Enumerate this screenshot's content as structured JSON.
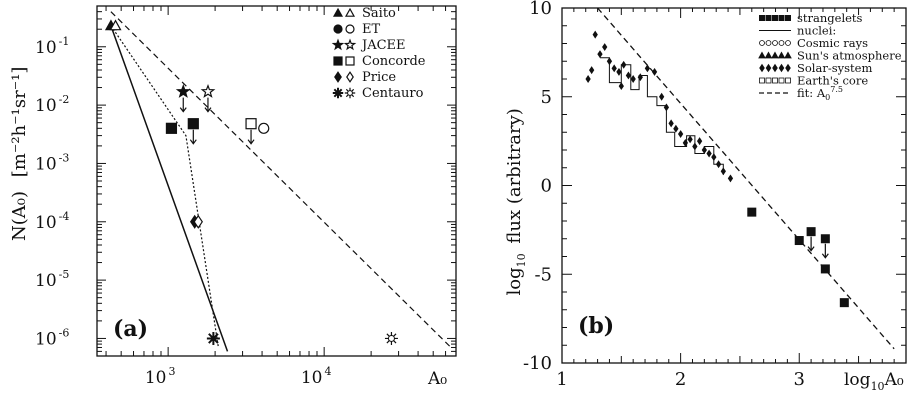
{
  "chart_data": [
    {
      "id": "a",
      "type": "scatter",
      "panel_label": "(a)",
      "xlabel": "A₀",
      "ylabel_main": "N(A₀)",
      "ylabel_units": "[m⁻²h⁻¹sr⁻¹]",
      "x_scale": "log",
      "y_scale": "log",
      "xlim": [
        350,
        70000
      ],
      "ylim": [
        5e-07,
        0.5
      ],
      "x_ticks": [
        {
          "value": 1000,
          "base": "10",
          "exp": "3"
        },
        {
          "value": 10000,
          "base": "10",
          "exp": "4"
        }
      ],
      "y_ticks": [
        {
          "value": 0.1,
          "base": "10",
          "exp": "-1"
        },
        {
          "value": 0.01,
          "base": "10",
          "exp": "-2"
        },
        {
          "value": 0.001,
          "base": "10",
          "exp": "-3"
        },
        {
          "value": 0.0001,
          "base": "10",
          "exp": "-4"
        },
        {
          "value": 1e-05,
          "base": "10",
          "exp": "-5"
        },
        {
          "value": 1e-06,
          "base": "10",
          "exp": "-6"
        }
      ],
      "legend_position": "top-right",
      "legend": [
        {
          "label": "Saito",
          "marker": "triangle"
        },
        {
          "label": "ET",
          "marker": "circle"
        },
        {
          "label": "JACEE",
          "marker": "star"
        },
        {
          "label": "Concorde",
          "marker": "square"
        },
        {
          "label": "Price",
          "marker": "diamond"
        },
        {
          "label": "Centauro",
          "marker": "asterisk"
        }
      ],
      "points": [
        {
          "series": "Saito",
          "x": 430,
          "y": 0.23,
          "marker": "triangle",
          "filled": true
        },
        {
          "series": "Saito",
          "x": 460,
          "y": 0.23,
          "marker": "triangle",
          "filled": false
        },
        {
          "series": "JACEE",
          "x": 1250,
          "y": 0.017,
          "marker": "star",
          "filled": true,
          "upper_limit": true
        },
        {
          "series": "JACEE",
          "x": 1800,
          "y": 0.017,
          "marker": "star",
          "filled": false,
          "upper_limit": true
        },
        {
          "series": "Concorde",
          "x": 1050,
          "y": 0.004,
          "marker": "square",
          "filled": true
        },
        {
          "series": "Concorde",
          "x": 1450,
          "y": 0.0048,
          "marker": "square",
          "filled": true,
          "upper_limit": true
        },
        {
          "series": "Concorde",
          "x": 3400,
          "y": 0.0048,
          "marker": "square",
          "filled": false,
          "upper_limit": true
        },
        {
          "series": "ET",
          "x": 4100,
          "y": 0.004,
          "marker": "circle",
          "filled": false
        },
        {
          "series": "Price",
          "x": 1480,
          "y": 0.0001,
          "marker": "diamond",
          "filled": true
        },
        {
          "series": "Price",
          "x": 1560,
          "y": 0.0001,
          "marker": "diamond",
          "filled": false
        },
        {
          "series": "Centauro",
          "x": 1950,
          "y": 1e-06,
          "marker": "asterisk",
          "filled": true
        },
        {
          "series": "Centauro",
          "x": 27000,
          "y": 1e-06,
          "marker": "asterisk",
          "filled": false
        }
      ],
      "lines": [
        {
          "style": "solid",
          "points": [
            [
              430,
              0.23
            ],
            [
              2400,
              6e-07
            ]
          ]
        },
        {
          "style": "dotted",
          "points": [
            [
              430,
              0.23
            ],
            [
              1300,
              0.003
            ],
            [
              2100,
              7e-07
            ]
          ]
        },
        {
          "style": "dashed",
          "points": [
            [
              430,
              0.4
            ],
            [
              65000,
              7e-07
            ]
          ]
        }
      ]
    },
    {
      "id": "b",
      "type": "scatter",
      "panel_label": "(b)",
      "xlabel_base": "log",
      "xlabel_sub": "10",
      "xlabel_var": "A₀",
      "ylabel_base": "log",
      "ylabel_sub": "10",
      "ylabel_rest": "flux (arbitrary)",
      "xlim": [
        1,
        3.9
      ],
      "ylim": [
        -10,
        10
      ],
      "x_ticks": [
        1,
        2,
        3
      ],
      "y_ticks": [
        10,
        5,
        0,
        -5,
        -10
      ],
      "legend_position": "top-right",
      "legend": [
        {
          "label": "strangelets",
          "style": "squares"
        },
        {
          "label": "nuclei:",
          "style": "solid"
        },
        {
          "label": "Cosmic rays",
          "style": "circles"
        },
        {
          "label": "Sun's atmosphere",
          "style": "triangles"
        },
        {
          "label": "Solar-system",
          "style": "diamonds"
        },
        {
          "label": "Earth's core",
          "style": "squares-open"
        },
        {
          "label": "fit: ",
          "style": "dashed",
          "fit_sub": "0",
          "fit_exp": "7.5"
        }
      ],
      "fit_line": [
        [
          1.3,
          10
        ],
        [
          3.8,
          -9.2
        ]
      ],
      "nuclei_step": [
        [
          1.32,
          7.2
        ],
        [
          1.4,
          7.2
        ],
        [
          1.4,
          5.8
        ],
        [
          1.5,
          5.8
        ],
        [
          1.5,
          6.8
        ],
        [
          1.58,
          6.8
        ],
        [
          1.58,
          5.4
        ],
        [
          1.65,
          5.4
        ],
        [
          1.65,
          6.2
        ],
        [
          1.72,
          6.2
        ],
        [
          1.72,
          5.0
        ],
        [
          1.8,
          5.0
        ],
        [
          1.8,
          4.5
        ],
        [
          1.88,
          4.5
        ],
        [
          1.88,
          3.0
        ],
        [
          1.95,
          3.0
        ],
        [
          1.95,
          2.2
        ],
        [
          2.05,
          2.2
        ],
        [
          2.05,
          2.8
        ],
        [
          2.12,
          2.8
        ],
        [
          2.12,
          1.8
        ],
        [
          2.2,
          1.8
        ],
        [
          2.2,
          2.2
        ],
        [
          2.28,
          2.2
        ],
        [
          2.28,
          1.2
        ],
        [
          2.36,
          1.2
        ],
        [
          2.36,
          0.6
        ]
      ],
      "nuclei_points": [
        [
          1.28,
          8.5
        ],
        [
          1.32,
          7.4
        ],
        [
          1.36,
          7.8
        ],
        [
          1.4,
          7.0
        ],
        [
          1.44,
          6.6
        ],
        [
          1.48,
          6.4
        ],
        [
          1.52,
          6.8
        ],
        [
          1.56,
          6.2
        ],
        [
          1.6,
          6.0
        ],
        [
          1.66,
          6.1
        ],
        [
          1.72,
          6.6
        ],
        [
          1.78,
          6.4
        ],
        [
          1.84,
          5.0
        ],
        [
          1.88,
          4.4
        ],
        [
          1.92,
          3.5
        ],
        [
          1.96,
          3.2
        ],
        [
          2.0,
          2.9
        ],
        [
          2.04,
          2.4
        ],
        [
          2.08,
          2.6
        ],
        [
          2.12,
          2.2
        ],
        [
          2.16,
          2.5
        ],
        [
          2.2,
          2.0
        ],
        [
          2.24,
          1.8
        ],
        [
          2.28,
          1.6
        ],
        [
          2.32,
          1.2
        ],
        [
          2.36,
          0.8
        ],
        [
          2.42,
          0.4
        ],
        [
          1.25,
          6.5
        ],
        [
          1.22,
          6.0
        ],
        [
          1.5,
          5.6
        ]
      ],
      "strangelets": [
        {
          "x": 2.6,
          "y": -1.5
        },
        {
          "x": 3.0,
          "y": -3.1
        },
        {
          "x": 3.1,
          "y": -2.6,
          "upper_limit": true
        },
        {
          "x": 3.22,
          "y": -3.0,
          "upper_limit": true
        },
        {
          "x": 3.22,
          "y": -4.7
        },
        {
          "x": 3.38,
          "y": -6.6
        }
      ]
    }
  ]
}
